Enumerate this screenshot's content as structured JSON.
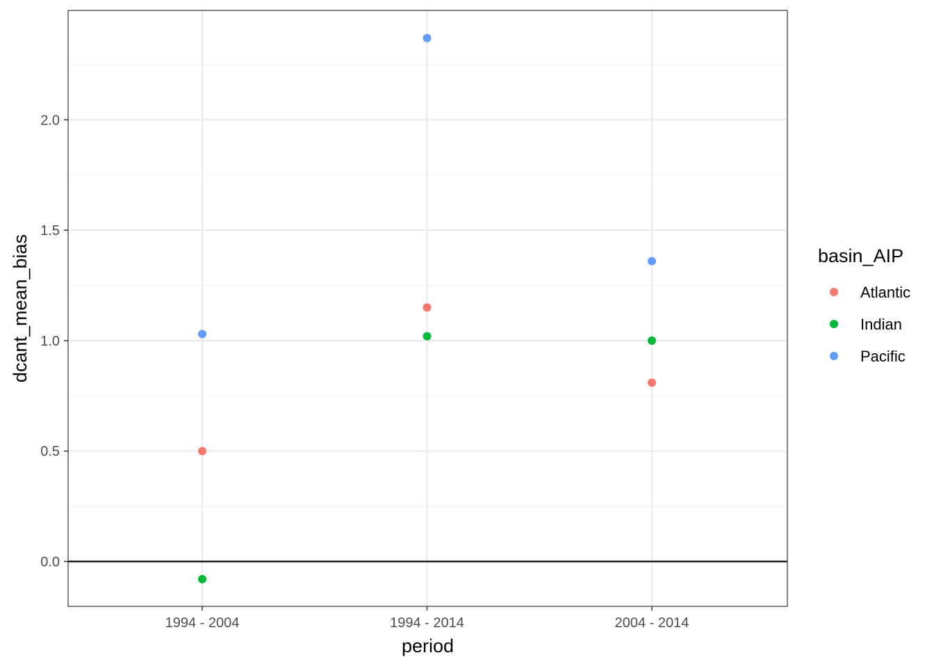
{
  "chart_data": {
    "type": "scatter",
    "title": "",
    "xlabel": "period",
    "ylabel": "dcant_mean_bias",
    "categories": [
      "1994 - 2004",
      "1994 - 2014",
      "2004 - 2014"
    ],
    "y_ticks": [
      "0.0",
      "0.5",
      "1.0",
      "1.5",
      "2.0"
    ],
    "ylim": [
      -0.2,
      2.5
    ],
    "reference_line_y": 0,
    "grid": true,
    "legend_position": "right",
    "legend_title": "basin_AIP",
    "series": [
      {
        "name": "Atlantic",
        "color": "#F8766D",
        "values": [
          0.5,
          1.15,
          0.81
        ]
      },
      {
        "name": "Indian",
        "color": "#00BA38",
        "values": [
          -0.08,
          1.02,
          1.0
        ]
      },
      {
        "name": "Pacific",
        "color": "#619CFF",
        "values": [
          1.03,
          2.37,
          1.36
        ]
      }
    ]
  }
}
